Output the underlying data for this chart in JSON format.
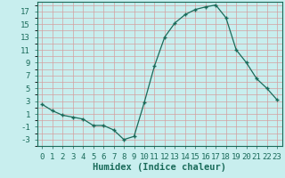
{
  "x": [
    0,
    1,
    2,
    3,
    4,
    5,
    6,
    7,
    8,
    9,
    10,
    11,
    12,
    13,
    14,
    15,
    16,
    17,
    18,
    19,
    20,
    21,
    22,
    23
  ],
  "y": [
    2.5,
    1.5,
    0.8,
    0.5,
    0.2,
    -0.8,
    -0.8,
    -1.5,
    -3.0,
    -2.5,
    2.8,
    8.5,
    13.0,
    15.2,
    16.5,
    17.3,
    17.7,
    18.0,
    16.0,
    11.0,
    9.0,
    6.5,
    5.0,
    3.2
  ],
  "line_color": "#1a6b5a",
  "marker": "+",
  "marker_size": 4,
  "bg_color": "#c8eeee",
  "grid_color": "#d4a0a0",
  "xlabel": "Humidex (Indice chaleur)",
  "ylabel_ticks": [
    -3,
    -1,
    1,
    3,
    5,
    7,
    9,
    11,
    13,
    15,
    17
  ],
  "xlim": [
    -0.5,
    23.5
  ],
  "ylim": [
    -4,
    18.5
  ],
  "xtick_labels": [
    "0",
    "1",
    "2",
    "3",
    "4",
    "5",
    "6",
    "7",
    "8",
    "9",
    "10",
    "11",
    "12",
    "13",
    "14",
    "15",
    "16",
    "17",
    "18",
    "19",
    "20",
    "21",
    "22",
    "23"
  ],
  "axis_color": "#1a6b5a",
  "tick_fontsize": 6.5,
  "label_fontsize": 7.5
}
